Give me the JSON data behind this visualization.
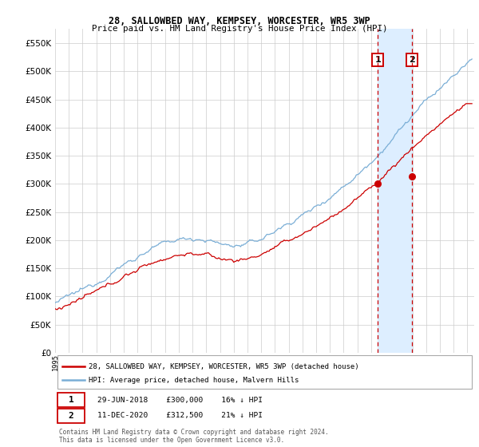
{
  "title": "28, SALLOWBED WAY, KEMPSEY, WORCESTER, WR5 3WP",
  "subtitle": "Price paid vs. HM Land Registry's House Price Index (HPI)",
  "legend_line1": "28, SALLOWBED WAY, KEMPSEY, WORCESTER, WR5 3WP (detached house)",
  "legend_line2": "HPI: Average price, detached house, Malvern Hills",
  "marker1_label": "1",
  "marker2_label": "2",
  "marker1_date": "29-JUN-2018",
  "marker1_price": "£300,000",
  "marker1_hpi_diff": "16% ↓ HPI",
  "marker2_date": "11-DEC-2020",
  "marker2_price": "£312,500",
  "marker2_hpi_diff": "21% ↓ HPI",
  "marker1_year": 2018.49,
  "marker2_year": 2020.95,
  "red_color": "#cc0000",
  "blue_color": "#7aaed6",
  "background_color": "#ffffff",
  "grid_color": "#cccccc",
  "highlight_color": "#ddeeff",
  "footer_line1": "Contains HM Land Registry data © Crown copyright and database right 2024.",
  "footer_line2": "This data is licensed under the Open Government Licence v3.0.",
  "ylim_max": 575000,
  "ylim_min": 0,
  "xlim_min": 1995.0,
  "xlim_max": 2025.5
}
